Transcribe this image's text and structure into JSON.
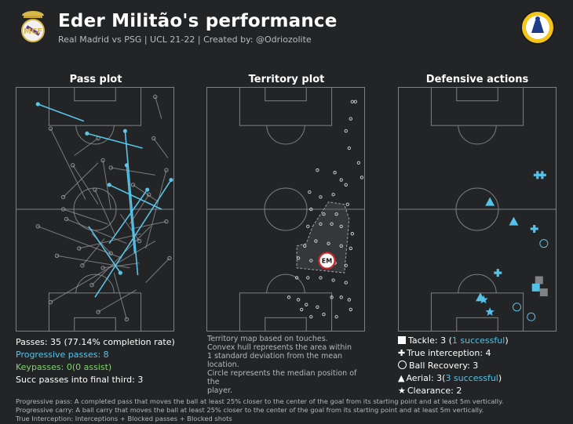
{
  "header": {
    "title": "Eder Militão's performance",
    "subtitle": "Real Madrid vs PSG | UCL 21-22 | Created by: @Odriozolite",
    "left_logo": "real-madrid-crest",
    "right_logo": "creator-badge-logo"
  },
  "colors": {
    "background": "#222426",
    "pitch_lines": "#7d7f82",
    "pass": "#8f9194",
    "progressive": "#58c4e8",
    "keypass": "#7fd46b",
    "defensive": "#56c1e6",
    "failed": "#808286"
  },
  "pass_panel": {
    "title": "Pass plot",
    "stats": {
      "passes": "Passes: 35 (77.14% completion rate)",
      "progressive": "Progressive passes: 8",
      "keypasses": "Keypasses: 0(0 assist)",
      "final_third": "Succ passes into final third: 3"
    }
  },
  "territory_panel": {
    "title": "Territory plot",
    "median_label": "EM",
    "note_lines": [
      "Territory map based on touches.",
      "Convex hull represents the area within",
      "1 standard deviation from the mean location.",
      "Circle represents the median position of the",
      "player."
    ]
  },
  "defensive_panel": {
    "title": "Defensive actions",
    "legend": {
      "tackle_prefix": "Tackle: 3 (",
      "tackle_success": "1 successful",
      "tackle_suffix": ")",
      "interception": "True interception: 4",
      "recovery": "Ball Recovery: 3",
      "aerial_prefix": "Aerial: 3(",
      "aerial_success": "3 successful",
      "aerial_suffix": ")",
      "clearance": "Clearance: 2"
    }
  },
  "footer_lines": [
    "Progressive pass: A completed pass that moves the ball at least 25% closer to the center of the goal from its starting point and at least 5m vertically.",
    "Progressive carry: A ball carry that moves the ball at least 25% closer to the center of the goal from its starting point and at least 5m vertically.",
    "True Interception: Interceptions + Blocked passes + Blocked shots"
  ],
  "chart_data": [
    {
      "type": "scatter",
      "name": "pass-plot",
      "x_range": [
        0,
        100
      ],
      "y_range": [
        0,
        100
      ],
      "progressive_passes": [
        {
          "x1": 43,
          "y1": 14,
          "x2": 14,
          "y2": 7
        },
        {
          "x1": 46,
          "y1": 57,
          "x2": 66,
          "y2": 76
        },
        {
          "x1": 59,
          "y1": 64,
          "x2": 83,
          "y2": 42
        },
        {
          "x1": 50,
          "y1": 86,
          "x2": 98,
          "y2": 38
        },
        {
          "x1": 77,
          "y1": 77,
          "x2": 69,
          "y2": 18
        },
        {
          "x1": 75,
          "y1": 68,
          "x2": 70,
          "y2": 32
        },
        {
          "x1": 92,
          "y1": 50,
          "x2": 59,
          "y2": 40
        },
        {
          "x1": 80,
          "y1": 25,
          "x2": 45,
          "y2": 19
        }
      ],
      "passes": [
        {
          "x1": 37,
          "y1": 28,
          "x2": 52,
          "y2": 21
        },
        {
          "x1": 44,
          "y1": 46,
          "x2": 22,
          "y2": 17
        },
        {
          "x1": 52,
          "y1": 48,
          "x2": 36,
          "y2": 32
        },
        {
          "x1": 60,
          "y1": 50,
          "x2": 55,
          "y2": 30
        },
        {
          "x1": 58,
          "y1": 56,
          "x2": 30,
          "y2": 50
        },
        {
          "x1": 63,
          "y1": 61,
          "x2": 50,
          "y2": 42
        },
        {
          "x1": 70,
          "y1": 64,
          "x2": 32,
          "y2": 54
        },
        {
          "x1": 67,
          "y1": 70,
          "x2": 14,
          "y2": 57
        },
        {
          "x1": 72,
          "y1": 74,
          "x2": 26,
          "y2": 69
        },
        {
          "x1": 78,
          "y1": 72,
          "x2": 55,
          "y2": 74
        },
        {
          "x1": 82,
          "y1": 66,
          "x2": 95,
          "y2": 34
        },
        {
          "x1": 85,
          "y1": 57,
          "x2": 48,
          "y2": 81
        },
        {
          "x1": 88,
          "y1": 63,
          "x2": 22,
          "y2": 88
        },
        {
          "x1": 76,
          "y1": 83,
          "x2": 52,
          "y2": 92
        },
        {
          "x1": 62,
          "y1": 76,
          "x2": 70,
          "y2": 95
        },
        {
          "x1": 56,
          "y1": 62,
          "x2": 42,
          "y2": 73
        },
        {
          "x1": 72,
          "y1": 56,
          "x2": 84,
          "y2": 44
        },
        {
          "x1": 90,
          "y1": 47,
          "x2": 74,
          "y2": 40
        },
        {
          "x1": 96,
          "y1": 29,
          "x2": 87,
          "y2": 21
        },
        {
          "x1": 92,
          "y1": 13,
          "x2": 88,
          "y2": 4
        },
        {
          "x1": 73,
          "y1": 58,
          "x2": 95,
          "y2": 55
        },
        {
          "x1": 79,
          "y1": 60,
          "x2": 40,
          "y2": 66
        },
        {
          "x1": 66,
          "y1": 52,
          "x2": 78,
          "y2": 63
        },
        {
          "x1": 48,
          "y1": 60,
          "x2": 60,
          "y2": 68
        },
        {
          "x1": 82,
          "y1": 80,
          "x2": 97,
          "y2": 70
        },
        {
          "x1": 88,
          "y1": 36,
          "x2": 60,
          "y2": 33
        },
        {
          "x1": 52,
          "y1": 31,
          "x2": 30,
          "y2": 45
        }
      ]
    },
    {
      "type": "scatter",
      "name": "territory-plot",
      "x_range": [
        0,
        100
      ],
      "y_range": [
        0,
        100
      ],
      "touches": [
        [
          92,
          6
        ],
        [
          94,
          6
        ],
        [
          91,
          13
        ],
        [
          88,
          18
        ],
        [
          90,
          25
        ],
        [
          96,
          31
        ],
        [
          98,
          37
        ],
        [
          70,
          34
        ],
        [
          81,
          35
        ],
        [
          85,
          38
        ],
        [
          88,
          40
        ],
        [
          65,
          43
        ],
        [
          72,
          45
        ],
        [
          80,
          44
        ],
        [
          66,
          50
        ],
        [
          74,
          52
        ],
        [
          82,
          52
        ],
        [
          89,
          48
        ],
        [
          64,
          57
        ],
        [
          72,
          56
        ],
        [
          79,
          56
        ],
        [
          85,
          57
        ],
        [
          92,
          60
        ],
        [
          62,
          65
        ],
        [
          69,
          63
        ],
        [
          77,
          64
        ],
        [
          85,
          65
        ],
        [
          91,
          66
        ],
        [
          58,
          70
        ],
        [
          66,
          71
        ],
        [
          74,
          72
        ],
        [
          81,
          72
        ],
        [
          88,
          73
        ],
        [
          57,
          78
        ],
        [
          64,
          78
        ],
        [
          72,
          78
        ],
        [
          80,
          79
        ],
        [
          88,
          80
        ],
        [
          52,
          86
        ],
        [
          58,
          87
        ],
        [
          63,
          89
        ],
        [
          70,
          90
        ],
        [
          79,
          86
        ],
        [
          85,
          86
        ],
        [
          90,
          87
        ],
        [
          60,
          91
        ],
        [
          66,
          94
        ],
        [
          74,
          93
        ],
        [
          82,
          94
        ],
        [
          91,
          91
        ]
      ],
      "hull": [
        [
          67,
          57
        ],
        [
          77,
          47
        ],
        [
          87,
          48
        ],
        [
          90,
          54
        ],
        [
          87,
          76
        ],
        [
          57,
          74
        ],
        [
          57,
          65
        ],
        [
          63,
          64
        ]
      ],
      "median": [
        76,
        71
      ]
    },
    {
      "type": "scatter",
      "name": "defensive-actions",
      "x_range": [
        0,
        100
      ],
      "y_range": [
        0,
        100
      ],
      "tackles": [
        {
          "x": 89,
          "y": 79,
          "success": false
        },
        {
          "x": 92,
          "y": 84,
          "success": false
        },
        {
          "x": 87,
          "y": 82,
          "success": true
        }
      ],
      "interceptions": [
        {
          "x": 88,
          "y": 36
        },
        {
          "x": 91,
          "y": 36
        },
        {
          "x": 86,
          "y": 58
        },
        {
          "x": 63,
          "y": 76
        }
      ],
      "recoveries": [
        {
          "x": 92,
          "y": 64
        },
        {
          "x": 84,
          "y": 94
        },
        {
          "x": 75,
          "y": 90
        }
      ],
      "aerials": [
        {
          "x": 58,
          "y": 47
        },
        {
          "x": 73,
          "y": 55
        },
        {
          "x": 52,
          "y": 86
        }
      ],
      "clearances": [
        {
          "x": 58,
          "y": 92
        },
        {
          "x": 54,
          "y": 87
        }
      ]
    }
  ]
}
